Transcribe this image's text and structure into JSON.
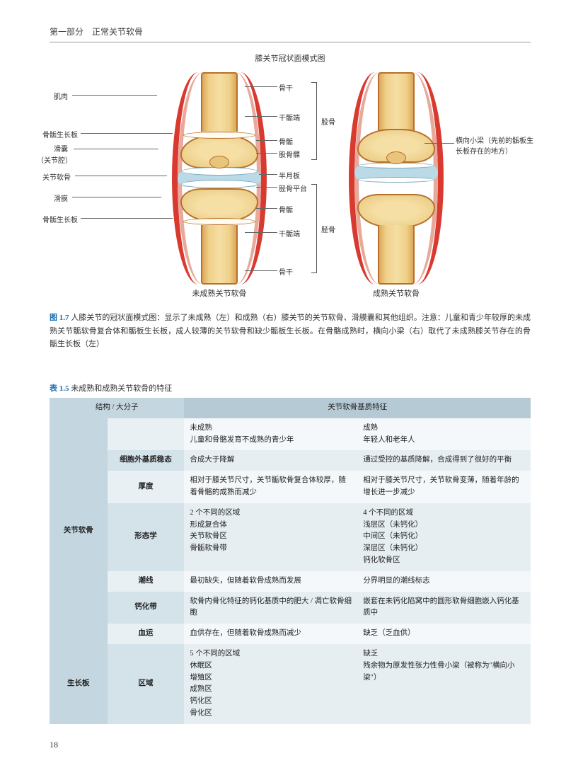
{
  "header": "第一部分　正常关节软骨",
  "pageNumber": "18",
  "diagram": {
    "title": "膝关节冠状面模式图",
    "leftCaption": "未成熟关节软骨",
    "rightCaption": "成熟关节软骨",
    "labelsLeft": {
      "muscle": "肌肉",
      "growthPlateTop": "骨骺生长板",
      "bursa": "滑囊",
      "jointCavity": "（关节腔）",
      "artCart": "关节软骨",
      "synovium": "滑膜",
      "growthPlateBot": "骨骺生长板"
    },
    "labelsCenter": {
      "diaphysisTop": "骨干",
      "metaphysisTop": "干骺端",
      "epiphysisTop": "骨骺",
      "condyle": "股骨髁",
      "meniscus": "半月板",
      "tibialPlat": "胫骨平台",
      "epiphysisBot": "骨骺",
      "metaphysisBot": "干骺端",
      "diaphysisBot": "骨干"
    },
    "bracketFemur": "股骨",
    "bracketTibia": "胫骨",
    "labelRight": "横向小梁（先前的骺板生长板存在的地方）"
  },
  "figCaption": {
    "num": "图 1.7",
    "text": "人膝关节的冠状面模式图：显示了未成熟（左）和成熟（右）膝关节的关节软骨、滑膜囊和其他组织。注意：儿童和青少年较厚的未成熟关节骺软骨复合体和骺板生长板，成人较薄的关节软骨和缺少骺板生长板。在骨骼成熟时，横向小梁（右）取代了未成熟膝关节存在的骨骺生长板（左）"
  },
  "tableTitle": {
    "num": "表 1.5",
    "text": "未成熟和成熟关节软骨的特征"
  },
  "table": {
    "colors": {
      "headerBg": "#b5cad5",
      "rowA": "#e6eef2",
      "rowB": "#f5f8fa",
      "rowHeadBg": "#c4d6df"
    },
    "colWidths": [
      "12%",
      "16%",
      "36%",
      "36%"
    ],
    "header": {
      "struct": "结构 / 大分子",
      "span": "关节软骨基质特征"
    },
    "groups": [
      {
        "rowhead": "关节软骨",
        "rows": [
          {
            "label": "",
            "c1": "未成熟\n儿童和骨骼发育不成熟的青少年",
            "c2": "成熟\n年轻人和老年人",
            "cls": "row-b"
          },
          {
            "label": "细胞外基质稳态",
            "c1": "合成大于降解",
            "c2": "通过受控的基质降解，合成得到了很好的平衡",
            "cls": "row-a"
          },
          {
            "label": "厚度",
            "c1": "相对于膝关节尺寸，关节骺软骨复合体较厚，随着骨骼的成熟而减少",
            "c2": "相对于膝关节尺寸，关节软骨变薄，随着年龄的增长进一步减少",
            "cls": "row-b"
          },
          {
            "label": "形态学",
            "c1": "2 个不同的区域\n形成复合体\n关节软骨区\n骨骺软骨带",
            "c2": "4 个不同的区域\n浅层区（未钙化）\n中间区（未钙化）\n深层区（未钙化）\n钙化软骨区",
            "cls": "row-a"
          },
          {
            "label": "潮线",
            "c1": "最初缺失，但随着软骨成熟而发展",
            "c2": "分界明显的潮线标志",
            "cls": "row-b"
          },
          {
            "label": "钙化带",
            "c1": "软骨内骨化特征的钙化基质中的肥大 / 凋亡软骨细胞",
            "c2": "嵌套在未钙化陷窝中的圆形软骨细胞嵌入钙化基质中",
            "cls": "row-a"
          },
          {
            "label": "血运",
            "c1": "血供存在，但随着软骨成熟而减少",
            "c2": "缺乏（乏血供）",
            "cls": "row-b"
          }
        ]
      },
      {
        "rowhead": "生长板",
        "rows": [
          {
            "label": "区域",
            "c1": "5 个不同的区域\n休眠区\n增殖区\n成熟区\n钙化区\n骨化区",
            "c2": "缺乏\n残余物为原发性张力性骨小梁（被称为\"横向小梁\"）",
            "cls": "row-a"
          }
        ]
      }
    ]
  }
}
